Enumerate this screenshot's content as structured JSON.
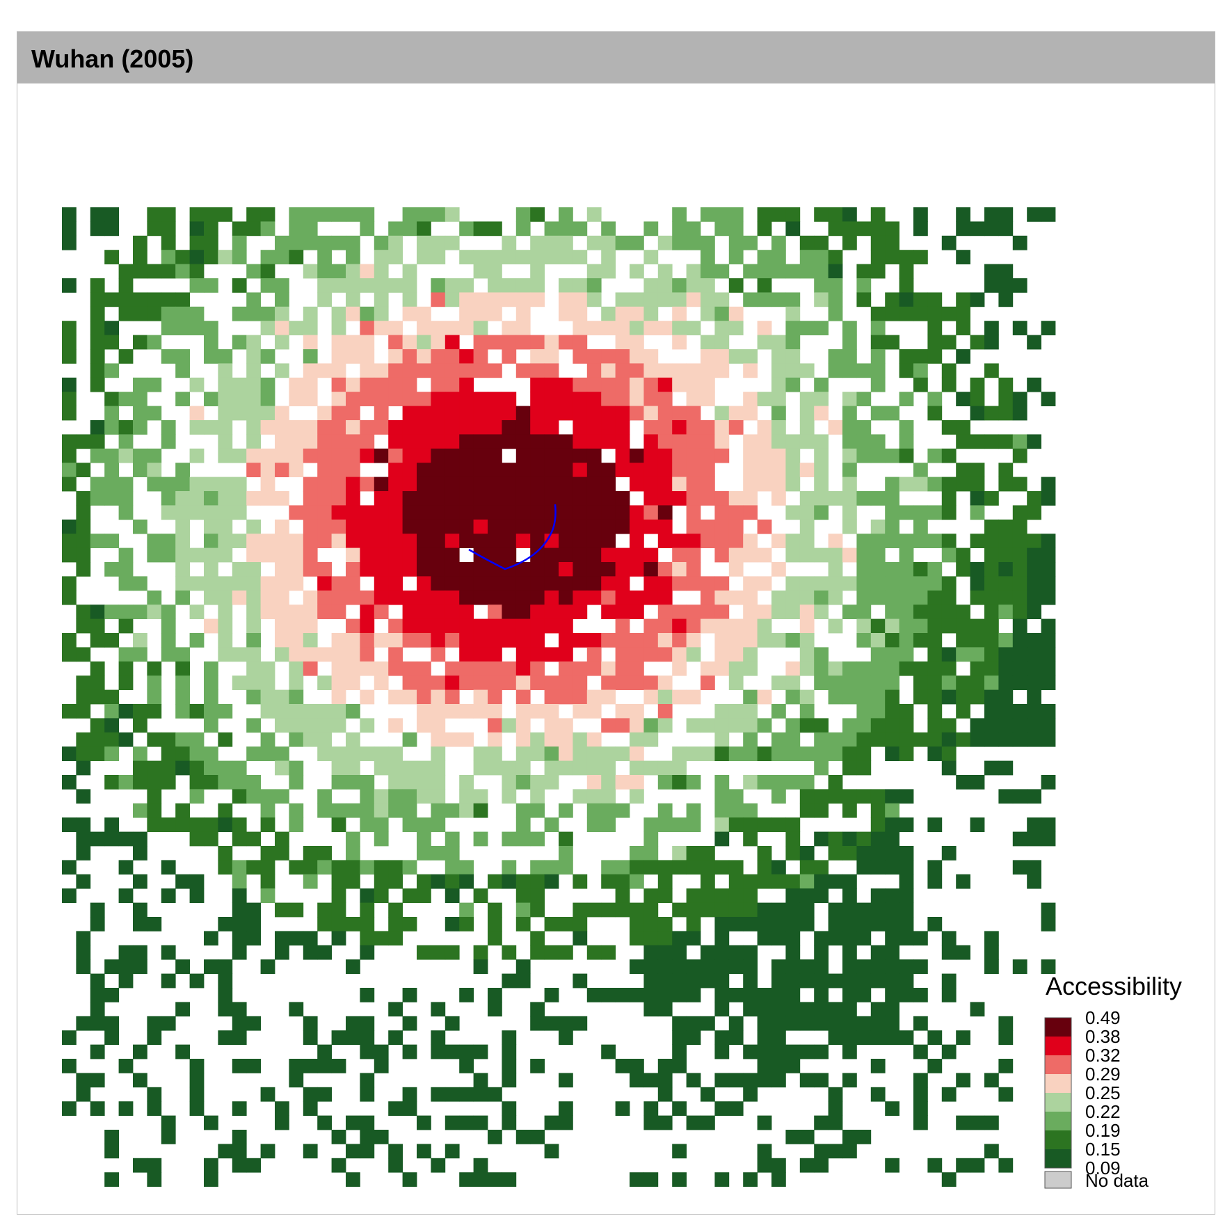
{
  "panel_title": "Wuhan (2005)",
  "legend": {
    "title": "Accessibility",
    "breaks": [
      "0.49",
      "0.38",
      "0.32",
      "0.29",
      "0.25",
      "0.22",
      "0.19",
      "0.15",
      "0.09"
    ],
    "colors": [
      "#67000d",
      "#e0001b",
      "#ee6b67",
      "#f9d2c0",
      "#acd39e",
      "#6aac5e",
      "#2c7421",
      "#185a24"
    ],
    "no_data_label": "No data",
    "no_data_color": "#cccccc"
  },
  "colors": {
    "strip": "#b3b3b3",
    "panel_border": "#bcbcbc",
    "route_line": "#0000ff"
  }
}
